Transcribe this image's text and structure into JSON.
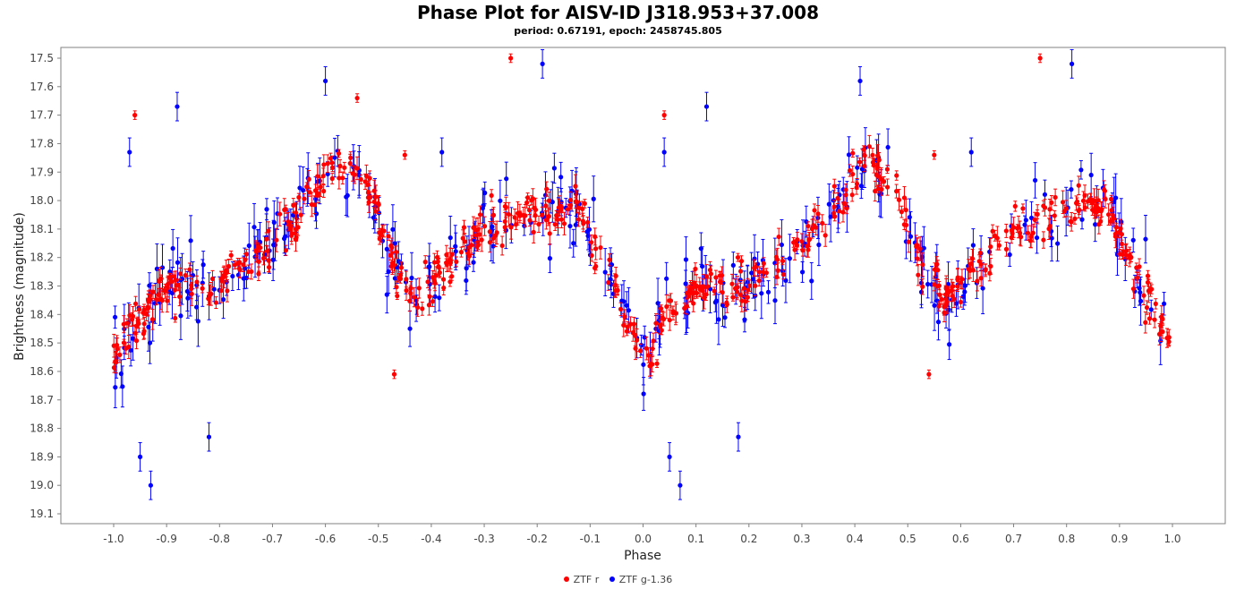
{
  "chart_data": {
    "type": "scatter",
    "title": "Phase Plot for AISV-ID J318.953+37.008",
    "subtitle": "period: 0.67191, epoch: 2458745.805",
    "xlabel": "Phase",
    "ylabel": "Brightness (magnitude)",
    "xlim": [
      -1.1,
      1.1
    ],
    "ylim": [
      17.5,
      19.13
    ],
    "y_inverted": true,
    "x_ticks": [
      "-1.0",
      "-0.9",
      "-0.8",
      "-0.7",
      "-0.6",
      "-0.5",
      "-0.4",
      "-0.3",
      "-0.2",
      "-0.1",
      "0.0",
      "0.1",
      "0.2",
      "0.3",
      "0.4",
      "0.5",
      "0.6",
      "0.7",
      "0.8",
      "0.9",
      "1.0"
    ],
    "y_ticks": [
      "17.5",
      "17.6",
      "17.7",
      "17.8",
      "17.9",
      "18.0",
      "18.1",
      "18.2",
      "18.3",
      "18.4",
      "18.5",
      "18.6",
      "18.7",
      "18.8",
      "18.9",
      "19.0",
      "19.1"
    ],
    "grid": false,
    "legend_position": "bottom-center",
    "series": [
      {
        "name": "ZTF r",
        "color": "#ff0000",
        "light_curve": [
          [
            0.0,
            18.55
          ],
          [
            0.05,
            18.4
          ],
          [
            0.1,
            18.3
          ],
          [
            0.2,
            18.3
          ],
          [
            0.3,
            18.15
          ],
          [
            0.35,
            18.05
          ],
          [
            0.42,
            17.85
          ],
          [
            0.48,
            17.95
          ],
          [
            0.52,
            18.2
          ],
          [
            0.57,
            18.35
          ],
          [
            0.62,
            18.25
          ],
          [
            0.7,
            18.1
          ],
          [
            0.8,
            18.05
          ],
          [
            0.87,
            18.0
          ],
          [
            0.92,
            18.2
          ],
          [
            0.97,
            18.4
          ],
          [
            1.0,
            18.55
          ]
        ],
        "outliers": [
          [
            -0.96,
            17.7
          ],
          [
            -0.25,
            17.5
          ],
          [
            0.04,
            17.7
          ],
          [
            0.75,
            17.5
          ],
          [
            -0.54,
            17.64
          ],
          [
            -0.45,
            17.84
          ],
          [
            0.55,
            17.84
          ],
          [
            -0.47,
            18.61
          ],
          [
            0.54,
            18.61
          ]
        ]
      },
      {
        "name": "ZTF g-1.36",
        "color": "#0000ff",
        "light_curve": [
          [
            0.0,
            18.55
          ],
          [
            0.05,
            18.4
          ],
          [
            0.1,
            18.3
          ],
          [
            0.2,
            18.3
          ],
          [
            0.3,
            18.15
          ],
          [
            0.35,
            18.05
          ],
          [
            0.42,
            17.85
          ],
          [
            0.48,
            17.95
          ],
          [
            0.52,
            18.2
          ],
          [
            0.57,
            18.35
          ],
          [
            0.62,
            18.25
          ],
          [
            0.7,
            18.1
          ],
          [
            0.8,
            18.05
          ],
          [
            0.87,
            18.0
          ],
          [
            0.92,
            18.2
          ],
          [
            0.97,
            18.4
          ],
          [
            1.0,
            18.55
          ]
        ],
        "outliers": [
          [
            -0.97,
            17.83
          ],
          [
            -0.88,
            17.67
          ],
          [
            -0.19,
            17.52
          ],
          [
            0.12,
            17.67
          ],
          [
            0.81,
            17.52
          ],
          [
            0.04,
            17.83
          ],
          [
            -0.95,
            18.9
          ],
          [
            -0.93,
            19.0
          ],
          [
            0.05,
            18.9
          ],
          [
            0.07,
            19.0
          ],
          [
            -0.82,
            18.83
          ],
          [
            0.18,
            18.83
          ],
          [
            -0.6,
            17.58
          ],
          [
            0.41,
            17.58
          ],
          [
            -0.38,
            17.83
          ],
          [
            0.62,
            17.83
          ]
        ]
      }
    ]
  }
}
